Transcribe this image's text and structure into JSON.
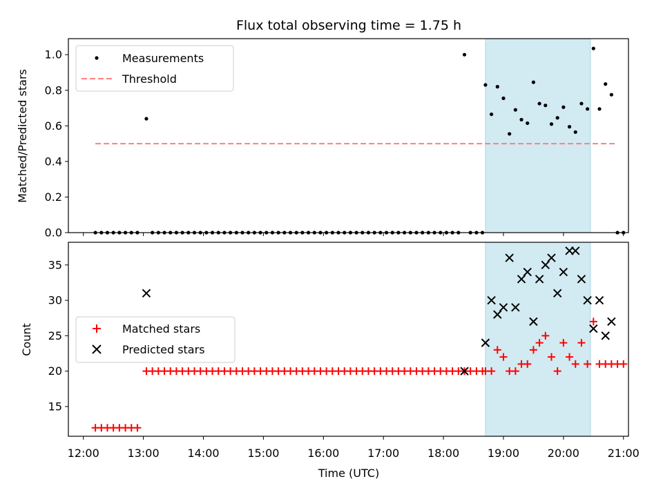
{
  "figure": {
    "title": "Flux total observing time = 1.75 h",
    "xlabel": "Time (UTC)"
  },
  "colors": {
    "measurement": "#000000",
    "threshold": "#ff7f7f",
    "matched": "#ff0000",
    "predicted": "#000000",
    "window_fill": "#add8e6"
  },
  "chart_data": [
    {
      "type": "scatter",
      "ylabel": "Matched/Predicted stars",
      "ylim": [
        0,
        1.09
      ],
      "yticks": [
        0.0,
        0.2,
        0.4,
        0.6,
        0.8,
        1.0
      ],
      "ytick_labels": [
        "0.0",
        "0.2",
        "0.4",
        "0.6",
        "0.8",
        "1.0"
      ],
      "xlim": [
        "11:45",
        "21:05"
      ],
      "legend_position": "top-left",
      "highlight_window": [
        "18:42",
        "20:27"
      ],
      "series": [
        {
          "name": "Measurements",
          "marker": "dot",
          "points": [
            [
              "12:12",
              0
            ],
            [
              "12:18",
              0
            ],
            [
              "12:24",
              0
            ],
            [
              "12:30",
              0
            ],
            [
              "12:36",
              0
            ],
            [
              "12:42",
              0
            ],
            [
              "12:48",
              0
            ],
            [
              "12:54",
              0
            ],
            [
              "13:03",
              0.64
            ],
            [
              "13:09",
              0
            ],
            [
              "13:15",
              0
            ],
            [
              "13:21",
              0
            ],
            [
              "13:27",
              0
            ],
            [
              "13:33",
              0
            ],
            [
              "13:39",
              0
            ],
            [
              "13:45",
              0
            ],
            [
              "13:51",
              0
            ],
            [
              "13:57",
              0
            ],
            [
              "14:03",
              0
            ],
            [
              "14:09",
              0
            ],
            [
              "14:15",
              0
            ],
            [
              "14:21",
              0
            ],
            [
              "14:27",
              0
            ],
            [
              "14:33",
              0
            ],
            [
              "14:39",
              0
            ],
            [
              "14:45",
              0
            ],
            [
              "14:51",
              0
            ],
            [
              "14:57",
              0
            ],
            [
              "15:03",
              0
            ],
            [
              "15:09",
              0
            ],
            [
              "15:15",
              0
            ],
            [
              "15:21",
              0
            ],
            [
              "15:27",
              0
            ],
            [
              "15:33",
              0
            ],
            [
              "15:39",
              0
            ],
            [
              "15:45",
              0
            ],
            [
              "15:51",
              0
            ],
            [
              "15:57",
              0
            ],
            [
              "16:03",
              0
            ],
            [
              "16:09",
              0
            ],
            [
              "16:15",
              0
            ],
            [
              "16:21",
              0
            ],
            [
              "16:27",
              0
            ],
            [
              "16:33",
              0
            ],
            [
              "16:39",
              0
            ],
            [
              "16:45",
              0
            ],
            [
              "16:51",
              0
            ],
            [
              "16:57",
              0
            ],
            [
              "17:03",
              0
            ],
            [
              "17:09",
              0
            ],
            [
              "17:15",
              0
            ],
            [
              "17:21",
              0
            ],
            [
              "17:27",
              0
            ],
            [
              "17:33",
              0
            ],
            [
              "17:39",
              0
            ],
            [
              "17:45",
              0
            ],
            [
              "17:51",
              0
            ],
            [
              "17:57",
              0
            ],
            [
              "18:03",
              0
            ],
            [
              "18:09",
              0
            ],
            [
              "18:15",
              0
            ],
            [
              "18:21",
              1.0
            ],
            [
              "18:27",
              0
            ],
            [
              "18:33",
              0
            ],
            [
              "18:39",
              0
            ],
            [
              "18:42",
              0.83
            ],
            [
              "18:48",
              0.665
            ],
            [
              "18:54",
              0.82
            ],
            [
              "19:00",
              0.755
            ],
            [
              "19:06",
              0.555
            ],
            [
              "19:12",
              0.69
            ],
            [
              "19:18",
              0.635
            ],
            [
              "19:24",
              0.615
            ],
            [
              "19:30",
              0.845
            ],
            [
              "19:36",
              0.725
            ],
            [
              "19:42",
              0.715
            ],
            [
              "19:48",
              0.61
            ],
            [
              "19:54",
              0.645
            ],
            [
              "20:00",
              0.705
            ],
            [
              "20:06",
              0.595
            ],
            [
              "20:12",
              0.565
            ],
            [
              "20:18",
              0.725
            ],
            [
              "20:24",
              0.695
            ],
            [
              "20:30",
              1.035
            ],
            [
              "20:36",
              0.695
            ],
            [
              "20:42",
              0.835
            ],
            [
              "20:48",
              0.775
            ],
            [
              "20:54",
              0
            ],
            [
              "21:00",
              0
            ]
          ]
        },
        {
          "name": "Threshold",
          "style": "dashed-line",
          "x": [
            "12:12",
            "20:54"
          ],
          "y": [
            0.5,
            0.5
          ]
        }
      ]
    },
    {
      "type": "scatter",
      "ylabel": "Count",
      "xlabel": "Time (UTC)",
      "ylim": [
        10.8,
        38.2
      ],
      "yticks": [
        15,
        20,
        25,
        30,
        35
      ],
      "ytick_labels": [
        "15",
        "20",
        "25",
        "30",
        "35"
      ],
      "xlim": [
        "11:45",
        "21:05"
      ],
      "xticks": [
        "12:00",
        "13:00",
        "14:00",
        "15:00",
        "16:00",
        "17:00",
        "18:00",
        "19:00",
        "20:00",
        "21:00"
      ],
      "xtick_labels": [
        "12:00",
        "13:00",
        "14:00",
        "15:00",
        "16:00",
        "17:00",
        "18:00",
        "19:00",
        "20:00",
        "21:00"
      ],
      "legend_position": "center-left",
      "highlight_window": [
        "18:42",
        "20:27"
      ],
      "series": [
        {
          "name": "Matched stars",
          "marker": "plus",
          "points": [
            [
              "12:12",
              12
            ],
            [
              "12:18",
              12
            ],
            [
              "12:24",
              12
            ],
            [
              "12:30",
              12
            ],
            [
              "12:36",
              12
            ],
            [
              "12:42",
              12
            ],
            [
              "12:48",
              12
            ],
            [
              "12:54",
              12
            ],
            [
              "13:03",
              20
            ],
            [
              "13:09",
              20
            ],
            [
              "13:15",
              20
            ],
            [
              "13:21",
              20
            ],
            [
              "13:27",
              20
            ],
            [
              "13:33",
              20
            ],
            [
              "13:39",
              20
            ],
            [
              "13:45",
              20
            ],
            [
              "13:51",
              20
            ],
            [
              "13:57",
              20
            ],
            [
              "14:03",
              20
            ],
            [
              "14:09",
              20
            ],
            [
              "14:15",
              20
            ],
            [
              "14:21",
              20
            ],
            [
              "14:27",
              20
            ],
            [
              "14:33",
              20
            ],
            [
              "14:39",
              20
            ],
            [
              "14:45",
              20
            ],
            [
              "14:51",
              20
            ],
            [
              "14:57",
              20
            ],
            [
              "15:03",
              20
            ],
            [
              "15:09",
              20
            ],
            [
              "15:15",
              20
            ],
            [
              "15:21",
              20
            ],
            [
              "15:27",
              20
            ],
            [
              "15:33",
              20
            ],
            [
              "15:39",
              20
            ],
            [
              "15:45",
              20
            ],
            [
              "15:51",
              20
            ],
            [
              "15:57",
              20
            ],
            [
              "16:03",
              20
            ],
            [
              "16:09",
              20
            ],
            [
              "16:15",
              20
            ],
            [
              "16:21",
              20
            ],
            [
              "16:27",
              20
            ],
            [
              "16:33",
              20
            ],
            [
              "16:39",
              20
            ],
            [
              "16:45",
              20
            ],
            [
              "16:51",
              20
            ],
            [
              "16:57",
              20
            ],
            [
              "17:03",
              20
            ],
            [
              "17:09",
              20
            ],
            [
              "17:15",
              20
            ],
            [
              "17:21",
              20
            ],
            [
              "17:27",
              20
            ],
            [
              "17:33",
              20
            ],
            [
              "17:39",
              20
            ],
            [
              "17:45",
              20
            ],
            [
              "17:51",
              20
            ],
            [
              "17:57",
              20
            ],
            [
              "18:03",
              20
            ],
            [
              "18:09",
              20
            ],
            [
              "18:15",
              20
            ],
            [
              "18:21",
              20
            ],
            [
              "18:27",
              20
            ],
            [
              "18:33",
              20
            ],
            [
              "18:39",
              20
            ],
            [
              "18:42",
              20
            ],
            [
              "18:48",
              20
            ],
            [
              "18:54",
              23
            ],
            [
              "19:00",
              22
            ],
            [
              "19:06",
              20
            ],
            [
              "19:12",
              20
            ],
            [
              "19:18",
              21
            ],
            [
              "19:24",
              21
            ],
            [
              "19:30",
              23
            ],
            [
              "19:36",
              24
            ],
            [
              "19:42",
              25
            ],
            [
              "19:48",
              22
            ],
            [
              "19:54",
              20
            ],
            [
              "20:00",
              24
            ],
            [
              "20:06",
              22
            ],
            [
              "20:12",
              21
            ],
            [
              "20:18",
              24
            ],
            [
              "20:24",
              21
            ],
            [
              "20:30",
              27
            ],
            [
              "20:36",
              21
            ],
            [
              "20:42",
              21
            ],
            [
              "20:48",
              21
            ],
            [
              "20:54",
              21
            ],
            [
              "21:00",
              21
            ]
          ]
        },
        {
          "name": "Predicted stars",
          "marker": "x",
          "points": [
            [
              "13:03",
              31
            ],
            [
              "18:21",
              20
            ],
            [
              "18:42",
              24
            ],
            [
              "18:48",
              30
            ],
            [
              "18:54",
              28
            ],
            [
              "19:00",
              29
            ],
            [
              "19:06",
              36
            ],
            [
              "19:12",
              29
            ],
            [
              "19:18",
              33
            ],
            [
              "19:24",
              34
            ],
            [
              "19:30",
              27
            ],
            [
              "19:36",
              33
            ],
            [
              "19:42",
              35
            ],
            [
              "19:48",
              36
            ],
            [
              "19:54",
              31
            ],
            [
              "20:00",
              34
            ],
            [
              "20:06",
              37
            ],
            [
              "20:12",
              37
            ],
            [
              "20:18",
              33
            ],
            [
              "20:24",
              30
            ],
            [
              "20:30",
              26
            ],
            [
              "20:36",
              30
            ],
            [
              "20:42",
              25
            ],
            [
              "20:48",
              27
            ]
          ]
        }
      ]
    }
  ]
}
